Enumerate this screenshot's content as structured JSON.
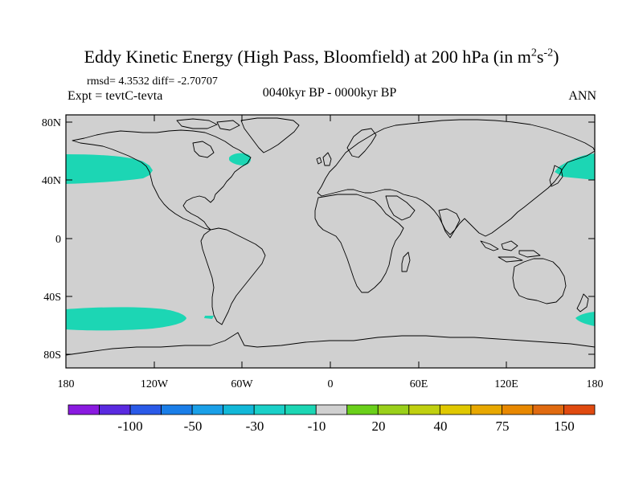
{
  "title": {
    "main": "Eddy Kinetic Energy (High Pass, Bloomfield) at 200 hPa (in m",
    "sup1": "2",
    "mid": "s",
    "sup2": "-2",
    "end": ")"
  },
  "stats_line": "rmsd= 4.3532 diff= -2.70707",
  "experiment_label": "Expt = tevtC-tevta",
  "period_label": "0040kyr BP - 0000kyr BP",
  "season_label": "ANN",
  "map": {
    "land_color": "#d0d0d0",
    "ocean_color": "#d0d0d0",
    "coast_color": "#000000",
    "lat_ticks": [
      "80N",
      "40N",
      "0",
      "40S",
      "80S"
    ],
    "lon_ticks": [
      "180",
      "120W",
      "60W",
      "0",
      "60E",
      "120E",
      "180"
    ],
    "anomaly_regions": [
      {
        "region": "North Pacific (east)",
        "class": "-10",
        "color": "#1cd6b4"
      },
      {
        "region": "North Pacific (west)",
        "class": "-10",
        "color": "#1cd6b4"
      },
      {
        "region": "Northeast North America",
        "class": "-10",
        "color": "#1cd6b4"
      },
      {
        "region": "South Pacific",
        "class": "-10",
        "color": "#1cd6b4"
      },
      {
        "region": "South of New Zealand",
        "class": "-10",
        "color": "#1cd6b4"
      }
    ]
  },
  "colorbar": {
    "colors": [
      "#8a1ae0",
      "#5a2ae0",
      "#2a5ae8",
      "#1a7ee8",
      "#1aa0e8",
      "#12b8d8",
      "#1ad0c8",
      "#1cd6b4",
      "#d0d0d0",
      "#6ad01a",
      "#9ad01a",
      "#c0d010",
      "#e0c800",
      "#e8a800",
      "#e88800",
      "#e06a10",
      "#e04a10"
    ],
    "labels": [
      "-100",
      "-50",
      "-30",
      "-10",
      "20",
      "40",
      "75",
      "150"
    ]
  }
}
